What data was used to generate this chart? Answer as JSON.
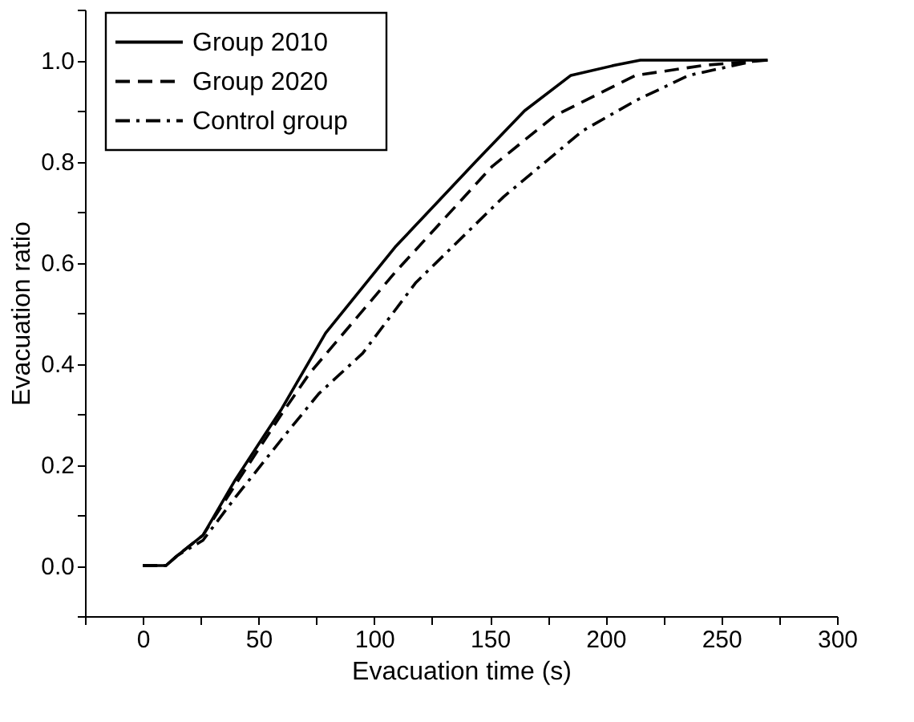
{
  "chart_data": {
    "type": "line",
    "xlabel": "Evacuation time (s)",
    "ylabel": "Evacuation ratio",
    "xlim": [
      -25,
      300
    ],
    "ylim": [
      -0.1,
      1.1
    ],
    "xticks": [
      {
        "value": -25,
        "label": null
      },
      0,
      {
        "value": 25,
        "label": null
      },
      50,
      {
        "value": 75,
        "label": null
      },
      100,
      {
        "value": 125,
        "label": null
      },
      150,
      {
        "value": 175,
        "label": null
      },
      200,
      {
        "value": 225,
        "label": null
      },
      250,
      {
        "value": 275,
        "label": null
      },
      300
    ],
    "yticks": [
      {
        "value": -0.1,
        "label": null
      },
      {
        "value": 0,
        "label": "0.0"
      },
      {
        "value": 0.1,
        "label": null
      },
      0.2,
      {
        "value": 0.3,
        "label": null
      },
      0.4,
      {
        "value": 0.5,
        "label": null
      },
      0.6,
      {
        "value": 0.7,
        "label": null
      },
      0.8,
      {
        "value": 0.9,
        "label": null
      },
      {
        "value": 1,
        "label": "1.0"
      },
      {
        "value": 1.1,
        "label": null
      }
    ],
    "grid": false,
    "legend": "top left",
    "marker": "none",
    "series": [
      {
        "name": "Group 2010",
        "color": "#000000",
        "line_style": "solid",
        "x": [
          0,
          10,
          15,
          26,
          40,
          50,
          60,
          79,
          109,
          144,
          165,
          185,
          204,
          215,
          270
        ],
        "values": [
          0,
          0,
          0.02,
          0.06,
          0.17,
          0.24,
          0.31,
          0.46,
          0.63,
          0.8,
          0.9,
          0.97,
          0.99,
          1.0,
          1.0
        ]
      },
      {
        "name": "Group 2020",
        "color": "#000000",
        "line_style": "dashed",
        "x": [
          0,
          10,
          15,
          26,
          40,
          50,
          60,
          72,
          109,
          151,
          178,
          213,
          243,
          270
        ],
        "values": [
          0,
          0,
          0.02,
          0.06,
          0.16,
          0.23,
          0.3,
          0.38,
          0.58,
          0.79,
          0.89,
          0.97,
          0.99,
          1.0
        ]
      },
      {
        "name": "Control group",
        "color": "#000000",
        "line_style": "dashdot",
        "x": [
          0,
          10,
          15,
          26,
          40,
          60,
          76,
          95,
          118,
          156,
          190,
          213,
          236,
          266
        ],
        "values": [
          0,
          0,
          0.02,
          0.05,
          0.135,
          0.25,
          0.34,
          0.42,
          0.56,
          0.73,
          0.86,
          0.92,
          0.97,
          1.0
        ]
      }
    ]
  }
}
